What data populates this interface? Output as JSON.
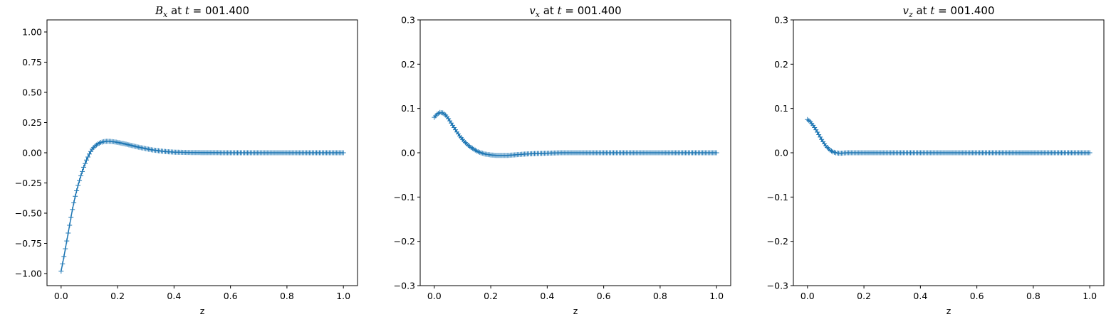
{
  "chart_data": [
    {
      "type": "line",
      "marker": "+",
      "color": "#1f77b4",
      "title": {
        "symbol": "B",
        "subscript": "x",
        "mid": " at ",
        "tvar": "t",
        "rest": " = 001.400"
      },
      "xlabel": "z",
      "ylabel": "",
      "xlim": [
        -0.05,
        1.05
      ],
      "ylim": [
        -1.1,
        1.1
      ],
      "xticks": [
        0.0,
        0.2,
        0.4,
        0.6,
        0.8,
        1.0
      ],
      "xtick_labels": [
        "0.0",
        "0.2",
        "0.4",
        "0.6",
        "0.8",
        "1.0"
      ],
      "yticks": [
        -1.0,
        -0.75,
        -0.5,
        -0.25,
        0.0,
        0.25,
        0.5,
        0.75,
        1.0
      ],
      "ytick_labels": [
        "−1.00",
        "−0.75",
        "−0.50",
        "−0.25",
        "0.00",
        "0.25",
        "0.50",
        "0.75",
        "1.00"
      ],
      "grid": false,
      "x": [
        0.0,
        0.01,
        0.02,
        0.03,
        0.04,
        0.05,
        0.06,
        0.07,
        0.08,
        0.09,
        0.1,
        0.11,
        0.12,
        0.13,
        0.14,
        0.15,
        0.16,
        0.17,
        0.18,
        0.19,
        0.2,
        0.225,
        0.25,
        0.275,
        0.3,
        0.325,
        0.35,
        0.375,
        0.4,
        0.45,
        0.5,
        0.6,
        0.7,
        0.8,
        0.9,
        1.0
      ],
      "y": [
        -0.98,
        -0.86,
        -0.73,
        -0.6,
        -0.47,
        -0.36,
        -0.27,
        -0.19,
        -0.12,
        -0.06,
        -0.01,
        0.03,
        0.055,
        0.073,
        0.085,
        0.092,
        0.095,
        0.095,
        0.093,
        0.09,
        0.086,
        0.074,
        0.06,
        0.046,
        0.034,
        0.023,
        0.015,
        0.009,
        0.005,
        0.002,
        0.001,
        0.0,
        0.0,
        0.0,
        0.0,
        0.0
      ]
    },
    {
      "type": "line",
      "marker": "+",
      "color": "#1f77b4",
      "title": {
        "symbol": "v",
        "subscript": "x",
        "mid": " at ",
        "tvar": "t",
        "rest": " = 001.400"
      },
      "xlabel": "z",
      "ylabel": "",
      "xlim": [
        -0.05,
        1.05
      ],
      "ylim": [
        -0.3,
        0.3
      ],
      "xticks": [
        0.0,
        0.2,
        0.4,
        0.6,
        0.8,
        1.0
      ],
      "xtick_labels": [
        "0.0",
        "0.2",
        "0.4",
        "0.6",
        "0.8",
        "1.0"
      ],
      "yticks": [
        -0.3,
        -0.2,
        -0.1,
        0.0,
        0.1,
        0.2,
        0.3
      ],
      "ytick_labels": [
        "−0.3",
        "−0.2",
        "−0.1",
        "0.0",
        "0.1",
        "0.2",
        "0.3"
      ],
      "grid": false,
      "x": [
        0.0,
        0.01,
        0.02,
        0.03,
        0.04,
        0.05,
        0.06,
        0.07,
        0.08,
        0.09,
        0.1,
        0.11,
        0.12,
        0.13,
        0.14,
        0.15,
        0.16,
        0.17,
        0.18,
        0.19,
        0.2,
        0.22,
        0.24,
        0.26,
        0.28,
        0.3,
        0.32,
        0.35,
        0.4,
        0.45,
        0.5,
        0.6,
        0.7,
        0.8,
        0.9,
        1.0
      ],
      "y": [
        0.08,
        0.087,
        0.091,
        0.09,
        0.085,
        0.077,
        0.067,
        0.057,
        0.047,
        0.038,
        0.03,
        0.023,
        0.017,
        0.012,
        0.008,
        0.004,
        0.001,
        -0.001,
        -0.003,
        -0.004,
        -0.005,
        -0.006,
        -0.006,
        -0.006,
        -0.005,
        -0.004,
        -0.003,
        -0.002,
        -0.001,
        0.0,
        0.0,
        0.0,
        0.0,
        0.0,
        0.0,
        0.0
      ]
    },
    {
      "type": "line",
      "marker": "+",
      "color": "#1f77b4",
      "title": {
        "symbol": "v",
        "subscript": "z",
        "mid": " at ",
        "tvar": "t",
        "rest": " = 001.400"
      },
      "xlabel": "z",
      "ylabel": "",
      "xlim": [
        -0.05,
        1.05
      ],
      "ylim": [
        -0.3,
        0.3
      ],
      "xticks": [
        0.0,
        0.2,
        0.4,
        0.6,
        0.8,
        1.0
      ],
      "xtick_labels": [
        "0.0",
        "0.2",
        "0.4",
        "0.6",
        "0.8",
        "1.0"
      ],
      "yticks": [
        -0.3,
        -0.2,
        -0.1,
        0.0,
        0.1,
        0.2,
        0.3
      ],
      "ytick_labels": [
        "−0.3",
        "−0.2",
        "−0.1",
        "0.0",
        "0.1",
        "0.2",
        "0.3"
      ],
      "grid": false,
      "x": [
        0.0,
        0.01,
        0.02,
        0.03,
        0.04,
        0.05,
        0.06,
        0.07,
        0.08,
        0.09,
        0.1,
        0.11,
        0.12,
        0.14,
        0.16,
        0.2,
        0.3,
        0.4,
        0.5,
        0.6,
        0.7,
        0.8,
        0.9,
        1.0
      ],
      "y": [
        0.075,
        0.07,
        0.062,
        0.052,
        0.041,
        0.03,
        0.02,
        0.012,
        0.006,
        0.002,
        0.0,
        -0.001,
        -0.001,
        0.0,
        0.0,
        0.0,
        0.0,
        0.0,
        0.0,
        0.0,
        0.0,
        0.0,
        0.0,
        0.0
      ]
    }
  ]
}
